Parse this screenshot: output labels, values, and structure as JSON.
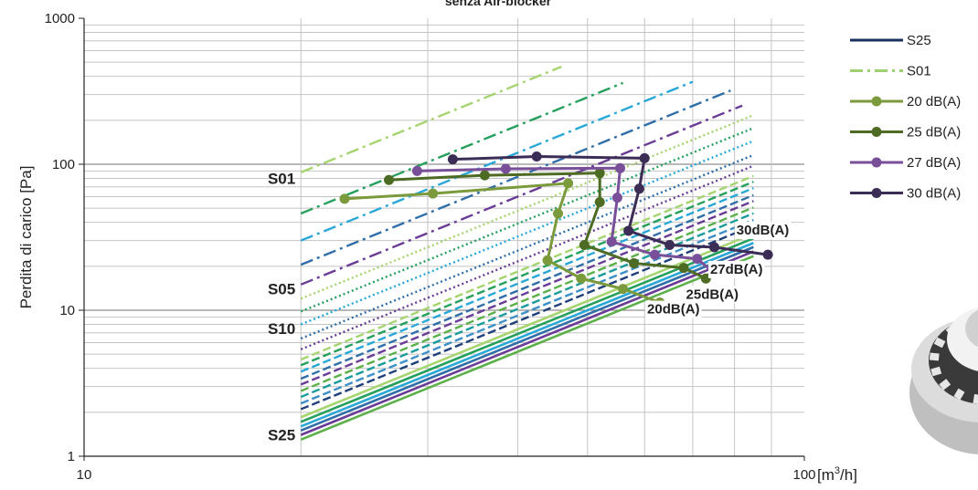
{
  "chart_data": {
    "type": "line",
    "title": "senza Air-blocker",
    "xlabel": "[m³/h]",
    "ylabel": "Perdita di carico [Pa]",
    "x_scale": "log",
    "y_scale": "log",
    "xlim": [
      10,
      100
    ],
    "ylim": [
      1,
      1000
    ],
    "x_ticks": [
      "10",
      "100"
    ],
    "y_ticks": [
      "1",
      "10",
      "100",
      "1000"
    ],
    "grid": true,
    "legend_position": "right",
    "legend": [
      {
        "label": "S25",
        "color": "#1a2f5c",
        "style": "solid",
        "marker": false
      },
      {
        "label": "S01",
        "color": "#9fd070",
        "style": "dashdot",
        "marker": false
      },
      {
        "label": "20 dB(A)",
        "color": "#7a9a3c",
        "style": "solid",
        "marker": true
      },
      {
        "label": "25 dB(A)",
        "color": "#4d6b23",
        "style": "solid",
        "marker": true
      },
      {
        "label": "27 dB(A)",
        "color": "#7a4f9a",
        "style": "solid",
        "marker": true
      },
      {
        "label": "30 dB(A)",
        "color": "#3b2d55",
        "style": "solid",
        "marker": true
      }
    ],
    "setting_labels": [
      {
        "text": "S01",
        "y": 80
      },
      {
        "text": "S05",
        "y": 14
      },
      {
        "text": "S10",
        "y": 7.5
      },
      {
        "text": "S25",
        "y": 1.4
      }
    ],
    "setting_lines": {
      "x_start": 20,
      "slope": 2,
      "colors": [
        "#a6d46f",
        "#25a05c",
        "#29a8d8",
        "#2f6ea8",
        "#6a3c96",
        "#5bb04a",
        "#1a9b9b",
        "#3c8fc8",
        "#1e3f7a"
      ],
      "groups": [
        {
          "style": "dashdot",
          "y0": [
            88,
            46,
            30,
            20.5,
            15
          ],
          "x_end": [
            46,
            56,
            70,
            79,
            82
          ]
        },
        {
          "style": "dotted",
          "y0": [
            12,
            9.8,
            8,
            6.4,
            5.4
          ],
          "x_end": [
            85,
            85,
            85,
            85,
            85
          ]
        },
        {
          "style": "dashed",
          "y0": [
            4.6,
            4.2,
            3.8,
            3.4,
            3.1,
            2.8,
            2.55,
            2.3,
            2.1
          ],
          "x_end": [
            85,
            85,
            85,
            85,
            85,
            85,
            85,
            85,
            85
          ]
        },
        {
          "style": "solid",
          "y0": [
            1.85,
            1.72,
            1.6,
            1.5,
            1.4,
            1.3
          ],
          "x_end": [
            85,
            85,
            85,
            85,
            85,
            85
          ]
        }
      ]
    },
    "series": [
      {
        "name": "20 dB(A)",
        "color": "#7a9a3c",
        "x": [
          23,
          30.5,
          47,
          45.5,
          44,
          49,
          56,
          63
        ],
        "y": [
          58,
          63,
          74,
          46,
          22,
          16.5,
          14,
          11.3
        ]
      },
      {
        "name": "25 dB(A)",
        "color": "#4d6b23",
        "x": [
          26.5,
          36,
          52,
          52,
          49.5,
          58,
          68,
          73
        ],
        "y": [
          78,
          84,
          87,
          55,
          28,
          21,
          19.5,
          16.5
        ]
      },
      {
        "name": "27 dB(A)",
        "color": "#7a4f9a",
        "x": [
          29,
          38.5,
          55.5,
          55,
          54,
          62,
          71,
          75
        ],
        "y": [
          90,
          93,
          94,
          59,
          29.5,
          24,
          22.5,
          18
        ]
      },
      {
        "name": "30 dB(A)",
        "color": "#3b2d55",
        "x": [
          32.5,
          42.5,
          60,
          59,
          57,
          65,
          75,
          89
        ],
        "y": [
          108,
          113,
          110,
          68,
          35,
          28,
          27,
          24
        ]
      }
    ],
    "annotations": [
      {
        "text": "20dB(A)",
        "x": 60.5,
        "y": 9.5
      },
      {
        "text": "25dB(A)",
        "x": 68.5,
        "y": 12
      },
      {
        "text": "27dB(A)",
        "x": 74,
        "y": 17.8
      },
      {
        "text": "30dB(A)",
        "x": 80.5,
        "y": 33
      }
    ]
  }
}
